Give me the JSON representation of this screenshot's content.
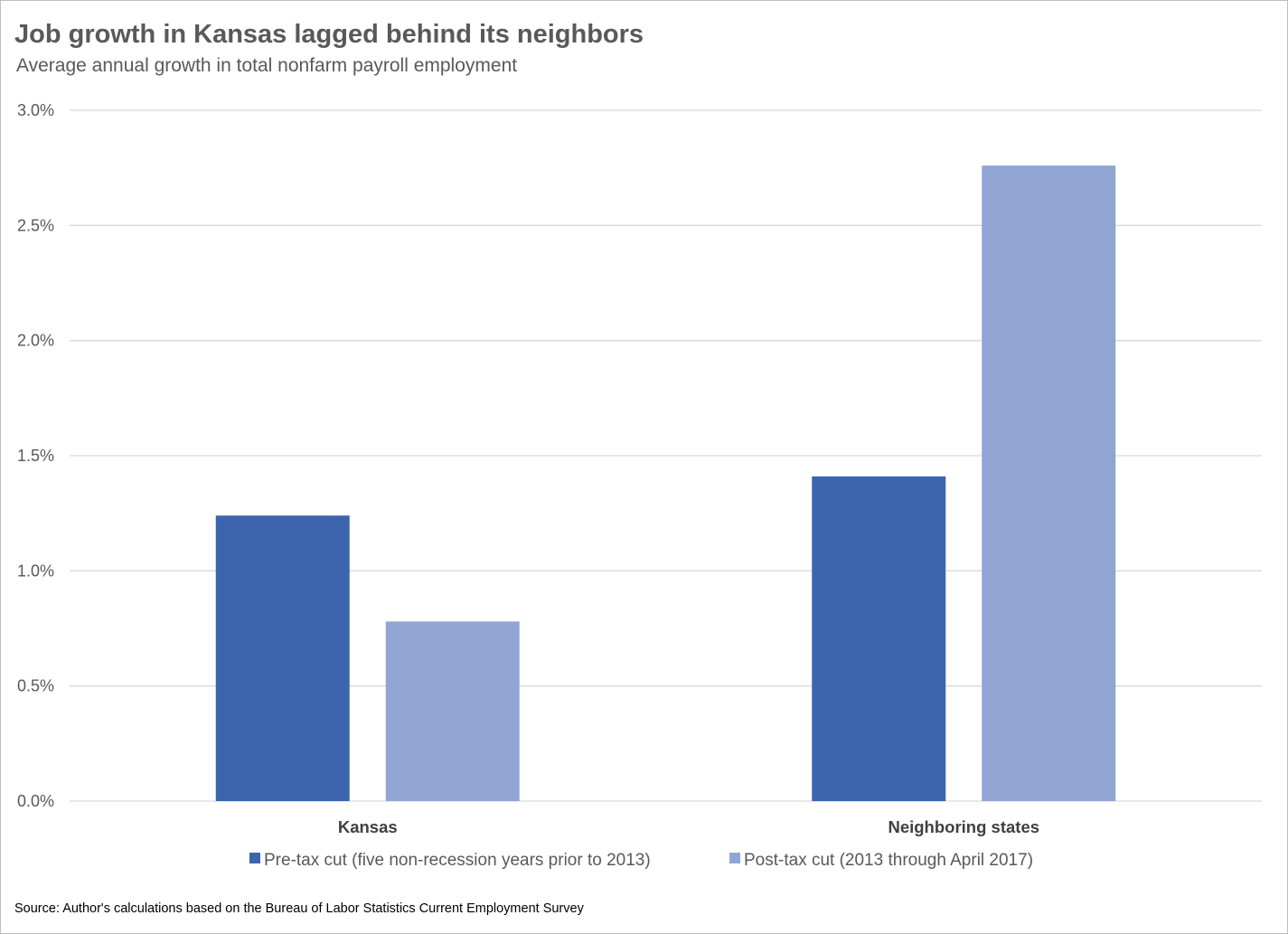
{
  "chart_data": {
    "type": "bar",
    "title": "Job growth in Kansas lagged behind its neighbors",
    "subtitle": "Average annual growth in total nonfarm payroll employment",
    "source": "Source: Author's calculations based on the Bureau of Labor Statistics Current Employment Survey",
    "categories": [
      "Kansas",
      "Neighboring states"
    ],
    "series": [
      {
        "name": "Pre-tax cut (five non-recession years prior to 2013)",
        "color": "#3c65ad",
        "values": [
          1.24,
          1.41
        ]
      },
      {
        "name": "Post-tax cut (2013 through April 2017)",
        "color": "#91a5d5",
        "values": [
          0.78,
          2.76
        ]
      }
    ],
    "ylim": [
      0,
      3
    ],
    "yticks": [
      0,
      0.5,
      1,
      1.5,
      2,
      2.5,
      3
    ],
    "ytick_labels": [
      "0.0%",
      "0.5%",
      "1.0%",
      "1.5%",
      "2.0%",
      "2.5%",
      "3.0%"
    ],
    "grid": true,
    "legend_position": "bottom"
  }
}
